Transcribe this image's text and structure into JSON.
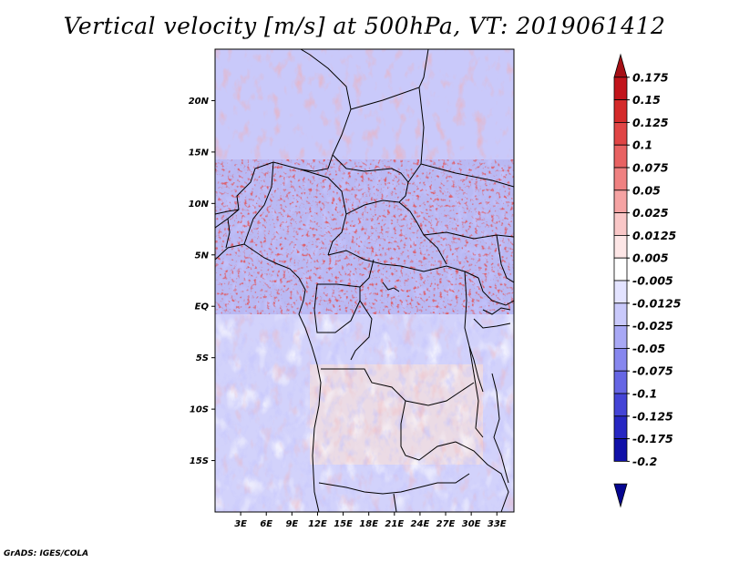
{
  "title": "Vertical velocity [m/s] at 500hPa, VT: 2019061412",
  "footer": "GrADS: IGES/COLA",
  "map": {
    "lon_range": [
      0,
      35
    ],
    "lat_range": [
      -20,
      25
    ],
    "lat_ticks": [
      "20N",
      "15N",
      "10N",
      "5N",
      "EQ",
      "5S",
      "10S",
      "15S"
    ],
    "lon_ticks": [
      "3E",
      "6E",
      "9E",
      "12E",
      "15E",
      "18E",
      "21E",
      "24E",
      "27E",
      "30E",
      "33E"
    ]
  },
  "colorbar": {
    "labels": [
      "0.175",
      "0.15",
      "0.125",
      "0.1",
      "0.075",
      "0.05",
      "0.025",
      "0.0125",
      "0.005",
      "-0.005",
      "-0.0125",
      "-0.025",
      "-0.05",
      "-0.075",
      "-0.1",
      "-0.125",
      "-0.175",
      "-0.2"
    ],
    "colors": [
      "#a50f15",
      "#c1141b",
      "#d42a2a",
      "#e04545",
      "#e86262",
      "#ef8181",
      "#f5a3a3",
      "#f9c7c7",
      "#fde6e6",
      "#ffffff",
      "#e3e3ff",
      "#c9c9fb",
      "#a8a8f5",
      "#8787ee",
      "#6666e4",
      "#4444d6",
      "#2727c2",
      "#1010a8",
      "#050590"
    ]
  }
}
